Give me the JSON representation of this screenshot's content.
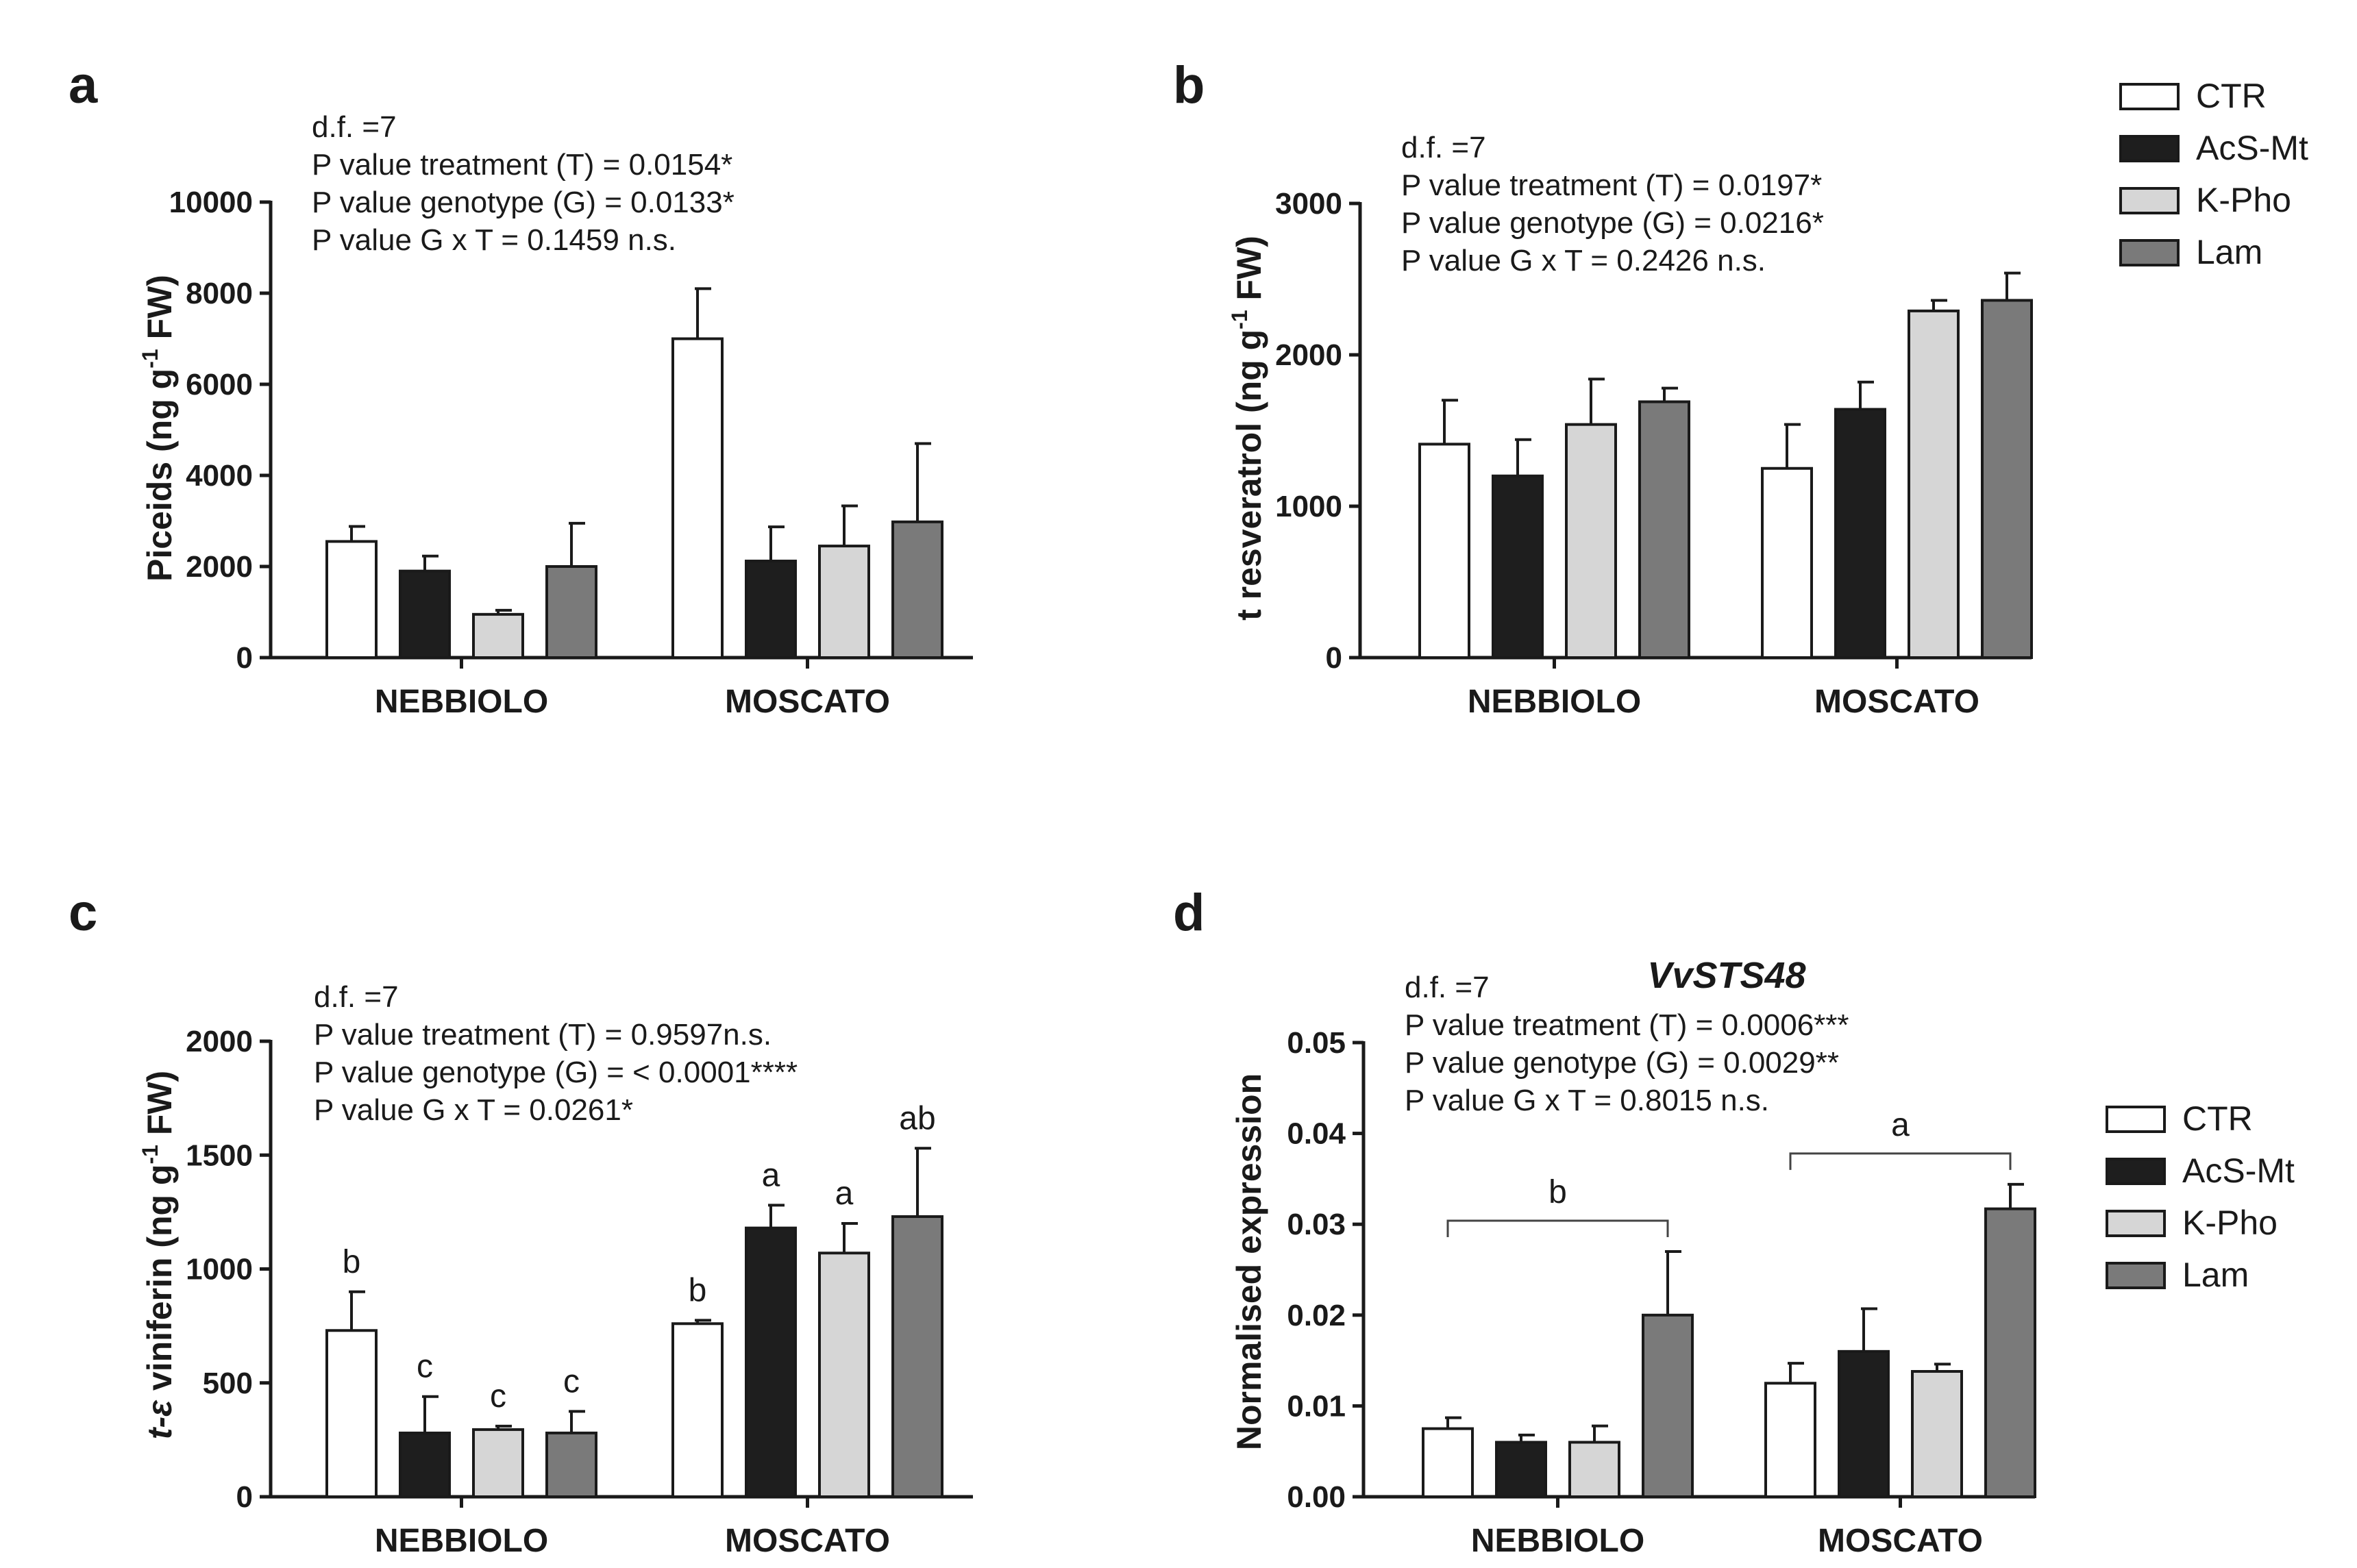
{
  "legend": {
    "labels": [
      "CTR",
      "AcS-Mt",
      "K-Pho",
      "Lam"
    ],
    "colors": [
      "#ffffff",
      "#1e1e1e",
      "#d6d6d6",
      "#7a7a7a"
    ]
  },
  "chart_data": [
    {
      "panel": "a",
      "type": "bar",
      "ylabel": "Piceids (ng g-1 FW)",
      "ylabel_main": "Piceids (ng g",
      "ylabel_sup": "-1",
      "ylabel_end": " FW)",
      "ylim": [
        0,
        10000
      ],
      "yticks": [
        "0",
        "2000",
        "4000",
        "6000",
        "8000",
        "10000"
      ],
      "categories": [
        "NEBBIOLO",
        "MOSCATO"
      ],
      "stats": [
        "d.f. =7",
        "P value treatment (T) = 0.0154*",
        "P value genotype (G) = 0.0133*",
        "P value G x T = 0.1459 n.s."
      ],
      "series": [
        {
          "name": "CTR",
          "values": [
            2550,
            7000
          ],
          "errors": [
            330,
            1100
          ]
        },
        {
          "name": "AcS-Mt",
          "values": [
            1900,
            2120
          ],
          "errors": [
            330,
            750
          ]
        },
        {
          "name": "K-Pho",
          "values": [
            950,
            2450
          ],
          "errors": [
            90,
            880
          ]
        },
        {
          "name": "Lam",
          "values": [
            2000,
            2980
          ],
          "errors": [
            950,
            1720
          ]
        }
      ],
      "letters": [],
      "title": ""
    },
    {
      "panel": "b",
      "type": "bar",
      "ylabel": "t resveratrol (ng g-1 FW)",
      "ylabel_main": "t resveratrol (ng g",
      "ylabel_sup": "-1",
      "ylabel_end": " FW)",
      "ylim": [
        0,
        3000
      ],
      "yticks": [
        "0",
        "1000",
        "2000",
        "3000"
      ],
      "categories": [
        "NEBBIOLO",
        "MOSCATO"
      ],
      "stats": [
        "d.f. =7",
        "P value treatment (T) = 0.0197*",
        "P value genotype (G) = 0.0216*",
        "P value G x T = 0.2426 n.s."
      ],
      "series": [
        {
          "name": "CTR",
          "values": [
            1410,
            1250
          ],
          "errors": [
            290,
            290
          ]
        },
        {
          "name": "AcS-Mt",
          "values": [
            1200,
            1640
          ],
          "errors": [
            240,
            180
          ]
        },
        {
          "name": "K-Pho",
          "values": [
            1540,
            2290
          ],
          "errors": [
            300,
            70
          ]
        },
        {
          "name": "Lam",
          "values": [
            1690,
            2360
          ],
          "errors": [
            90,
            180
          ]
        }
      ],
      "letters": [],
      "title": ""
    },
    {
      "panel": "c",
      "type": "bar",
      "ylabel": "t-ε viniferin (ng g-1 FW)",
      "ylabel_prefix": "t-ε",
      "ylabel_main": " viniferin (ng g",
      "ylabel_sup": "-1",
      "ylabel_end": " FW)",
      "ylim": [
        0,
        2000
      ],
      "yticks": [
        "0",
        "500",
        "1000",
        "1500",
        "2000"
      ],
      "categories": [
        "NEBBIOLO",
        "MOSCATO"
      ],
      "stats": [
        "d.f. =7",
        "P value treatment (T) = 0.9597n.s.",
        "P value genotype (G) = < 0.0001****",
        "P value G x T = 0.0261*"
      ],
      "series": [
        {
          "name": "CTR",
          "values": [
            730,
            760
          ],
          "errors": [
            170,
            15
          ]
        },
        {
          "name": "AcS-Mt",
          "values": [
            280,
            1180
          ],
          "errors": [
            160,
            100
          ]
        },
        {
          "name": "K-Pho",
          "values": [
            295,
            1070
          ],
          "errors": [
            15,
            130
          ]
        },
        {
          "name": "Lam",
          "values": [
            280,
            1230
          ],
          "errors": [
            95,
            300
          ]
        }
      ],
      "letters": [
        [
          "b",
          "c",
          "c",
          "c"
        ],
        [
          "b",
          "a",
          "a",
          "ab"
        ]
      ],
      "title": ""
    },
    {
      "panel": "d",
      "type": "bar",
      "ylabel": "Normalised expression",
      "ylim": [
        0,
        0.05
      ],
      "yticks": [
        "0.00",
        "0.01",
        "0.02",
        "0.03",
        "0.04",
        "0.05"
      ],
      "categories": [
        "NEBBIOLO",
        "MOSCATO"
      ],
      "stats": [
        "d.f. =7",
        "P value treatment (T) = 0.0006***",
        "P value genotype (G) = 0.0029**",
        "P value G x T = 0.8015 n.s."
      ],
      "title": "VvSTS48",
      "series": [
        {
          "name": "CTR",
          "values": [
            0.0075,
            0.0125
          ],
          "errors": [
            0.0012,
            0.0022
          ]
        },
        {
          "name": "AcS-Mt",
          "values": [
            0.006,
            0.016
          ],
          "errors": [
            0.0008,
            0.0047
          ]
        },
        {
          "name": "K-Pho",
          "values": [
            0.006,
            0.0138
          ],
          "errors": [
            0.0018,
            0.0008
          ]
        },
        {
          "name": "Lam",
          "values": [
            0.02,
            0.0317
          ],
          "errors": [
            0.007,
            0.0027
          ]
        }
      ],
      "letters": [],
      "group_letters": [
        "b",
        "a"
      ]
    }
  ]
}
